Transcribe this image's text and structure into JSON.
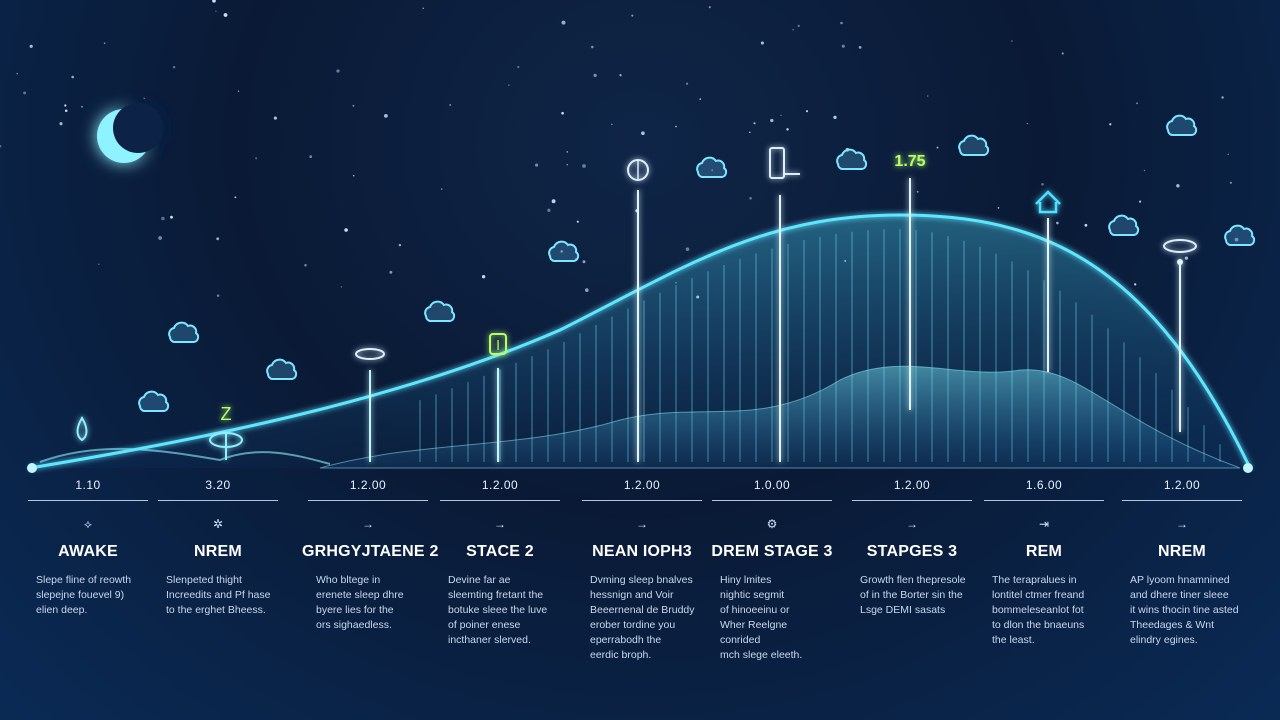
{
  "colors": {
    "background": "#0a1a36",
    "curve": "#5fe6ff",
    "glow": "#37c7ff",
    "accent_green": "#b7ff6b",
    "text": "#ffffff"
  },
  "icons": {
    "moon": "crescent-moon-icon",
    "clouds": "cloud-icon",
    "markers": [
      "droplet-icon",
      "z-icon",
      "disc-icon",
      "bolt-icon",
      "globe-icon",
      "monitor-icon",
      "number-icon",
      "house-icon",
      "ring-icon"
    ]
  },
  "markers": {
    "z_label": "Z",
    "bolt_label": "l",
    "number_label": "1.75"
  },
  "stages": [
    {
      "time": "1.10",
      "arrow": "⟡",
      "name": "AWAKE",
      "desc": [
        "Slepe fline of reowth",
        "slepejne fouevel 9)",
        "elien deep."
      ]
    },
    {
      "time": "3.20",
      "arrow": "✲",
      "name": "NREM",
      "desc": [
        "Slenpeted thight",
        "Increedits and Pf hase",
        "to the erghet Bheess."
      ]
    },
    {
      "time": "1.2.00",
      "arrow": "→",
      "name": "GRHGYJTAENE 2",
      "desc": [
        "Who bltege in",
        "erenete sleep dhre",
        "byere lies for the",
        "ors sighaedless."
      ]
    },
    {
      "time": "1.2.00",
      "arrow": "→",
      "name": "STACE 2",
      "desc": [
        "Devine far ae",
        "sleemting fretant the",
        "botuke sleee the luve",
        "of poiner enese",
        "incthaner slerved."
      ]
    },
    {
      "time": "1.2.00",
      "arrow": "→",
      "name": "NEAN IOPH3",
      "desc": [
        "Dvming sleep bnalves",
        "hessnign and Voir",
        "Beeernenal de Bruddy",
        "erober tordine you",
        "eperrabodh the",
        "eerdic broph."
      ]
    },
    {
      "time": "1.0.00",
      "arrow": "⚙",
      "name": "DREM STAGE 3",
      "desc": [
        "Hiny lmites",
        "nightic segmit",
        "of hinoeeinu or",
        "Wher Reelgne",
        "conrided",
        "mch slege eleeth."
      ]
    },
    {
      "time": "1.2.00",
      "arrow": "→",
      "name": "STAPGES 3",
      "desc": [
        "Growth flen thepresole",
        "of in the Borter sin the",
        "Lsge DEMI sasats"
      ]
    },
    {
      "time": "1.6.00",
      "arrow": "⇥",
      "name": "REM",
      "desc": [
        "The terapralues in",
        "lontitel ctmer freand",
        "bommeleseanlot fot",
        "to dlon the bnaeuns",
        "the least."
      ]
    },
    {
      "time": "1.2.00",
      "arrow": "→",
      "name": "NREM",
      "desc": [
        "AP lyoom hnamnined",
        "and dhere tiner sleee",
        "it wins thocin tine asted",
        "Theedages & Wnt",
        "elindry egines."
      ]
    }
  ]
}
